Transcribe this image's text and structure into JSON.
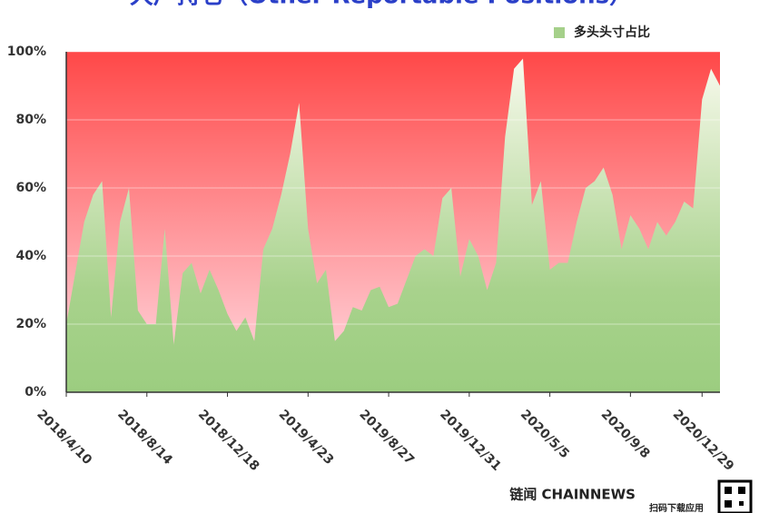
{
  "chart_data": {
    "type": "area",
    "title": "大户持仓（Other Reportable Positions）",
    "series": [
      {
        "name": "多头头寸占比",
        "color": "#a5d08a",
        "values": [
          20,
          35,
          50,
          58,
          62,
          22,
          50,
          60,
          24,
          20,
          20,
          48,
          14,
          35,
          38,
          29,
          36,
          30,
          23,
          18,
          22,
          15,
          42,
          48,
          58,
          70,
          85,
          48,
          32,
          36,
          15,
          18,
          25,
          24,
          30,
          31,
          25,
          26,
          33,
          40,
          42,
          40,
          57,
          60,
          34,
          45,
          40,
          30,
          38,
          75,
          95,
          98,
          55,
          62,
          36,
          38,
          38,
          50,
          60,
          62,
          66,
          58,
          42,
          52,
          48,
          42,
          50,
          46,
          50,
          56,
          54,
          86,
          95,
          90
        ]
      }
    ],
    "x": [
      "2018/4/10",
      "2018/4/24",
      "2018/5/8",
      "2018/5/22",
      "2018/6/5",
      "2018/6/19",
      "2018/7/3",
      "2018/7/17",
      "2018/7/31",
      "2018/8/14",
      "2018/8/28",
      "2018/9/11",
      "2018/9/25",
      "2018/10/9",
      "2018/10/23",
      "2018/11/6",
      "2018/11/20",
      "2018/12/4",
      "2018/12/18",
      "2019/1/1",
      "2019/1/15",
      "2019/1/29",
      "2019/2/12",
      "2019/2/26",
      "2019/3/12",
      "2019/3/26",
      "2019/4/9",
      "2019/4/23",
      "2019/5/7",
      "2019/5/21",
      "2019/6/4",
      "2019/6/18",
      "2019/7/2",
      "2019/7/16",
      "2019/7/30",
      "2019/8/13",
      "2019/8/27",
      "2019/9/10",
      "2019/9/24",
      "2019/10/8",
      "2019/10/22",
      "2019/11/5",
      "2019/11/19",
      "2019/12/3",
      "2019/12/17",
      "2019/12/31",
      "2020/1/14",
      "2020/1/28",
      "2020/2/11",
      "2020/2/25",
      "2020/3/10",
      "2020/3/24",
      "2020/4/7",
      "2020/4/21",
      "2020/5/5",
      "2020/5/19",
      "2020/6/2",
      "2020/6/16",
      "2020/6/30",
      "2020/7/14",
      "2020/7/28",
      "2020/8/11",
      "2020/8/25",
      "2020/9/8",
      "2020/9/22",
      "2020/10/6",
      "2020/10/20",
      "2020/11/3",
      "2020/11/17",
      "2020/12/1",
      "2020/12/15",
      "2020/12/29",
      "2021/1/12",
      "2021/1/26"
    ],
    "xticks": [
      "2018/4/10",
      "2018/8/14",
      "2018/12/18",
      "2019/4/23",
      "2019/8/27",
      "2019/12/31",
      "2020/5/5",
      "2020/9/8",
      "2020/12/29"
    ],
    "ylim": [
      0,
      100
    ],
    "yticks": [
      {
        "value": 0,
        "label": "0%"
      },
      {
        "value": 20,
        "label": "20%"
      },
      {
        "value": 40,
        "label": "40%"
      },
      {
        "value": 60,
        "label": "60%"
      },
      {
        "value": 80,
        "label": "80%"
      },
      {
        "value": 100,
        "label": "100%"
      }
    ],
    "background_color": "#ff5050",
    "legend": "top-right",
    "grid": true
  },
  "footer": {
    "brand": "链闻 CHAINNEWS",
    "tagline": "扫码下载应用"
  }
}
